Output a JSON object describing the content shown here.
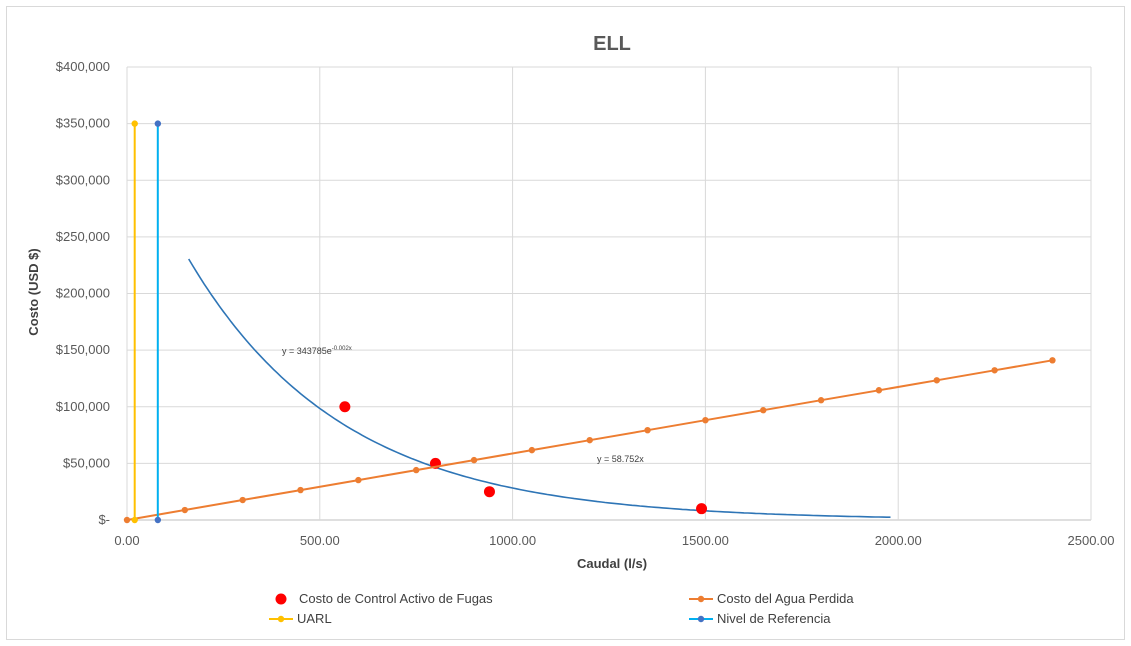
{
  "chart_data": {
    "type": "scatter",
    "title": "ELL",
    "xlabel": "Caudal (l/s)",
    "ylabel": "Costo (USD $)",
    "xlim": [
      0,
      2500
    ],
    "ylim": [
      0,
      400000
    ],
    "x_ticks": [
      "0.00",
      "500.00",
      "1000.00",
      "1500.00",
      "2000.00",
      "2500.00"
    ],
    "y_ticks": [
      "$-",
      "$50,000",
      "$100,000",
      "$150,000",
      "$200,000",
      "$250,000",
      "$300,000",
      "$350,000",
      "$400,000"
    ],
    "grid": true,
    "legend_position": "bottom",
    "series": [
      {
        "name": "Costo de Control Activo de Fugas",
        "kind": "markers",
        "color": "#ff0000",
        "x": [
          565,
          800,
          940,
          1490
        ],
        "y": [
          100000,
          50000,
          25000,
          10000
        ]
      },
      {
        "name": "Costo del Agua Perdida",
        "kind": "line-markers",
        "color": "#ed7d31",
        "x": [
          0,
          150,
          300,
          450,
          600,
          750,
          900,
          1050,
          1200,
          1350,
          1500,
          1650,
          1800,
          1950,
          2100,
          2250,
          2400
        ],
        "y": [
          0,
          8813,
          17626,
          26438,
          35251,
          44064,
          52877,
          61690,
          70502,
          79315,
          88128,
          96941,
          105754,
          114566,
          123379,
          132192,
          141005
        ]
      },
      {
        "name": "UARL",
        "kind": "line-markers",
        "color": "#ffc000",
        "x": [
          20,
          20
        ],
        "y": [
          0,
          350000
        ]
      },
      {
        "name": "Nivel de Referencia",
        "kind": "line-markers",
        "color": "#00b0f0",
        "marker_color": "#4472c4",
        "x": [
          80,
          80
        ],
        "y": [
          0,
          350000
        ]
      }
    ],
    "trendlines": [
      {
        "label": "y = 343785e",
        "exponent": "-0.002x",
        "kind": "exponential",
        "a": 343785,
        "b": -0.0025,
        "x_range": [
          160,
          1980
        ],
        "color": "#2e75b6"
      },
      {
        "label": "y = 58.752x",
        "kind": "linear",
        "slope": 58.752,
        "color": "#ed7d31"
      }
    ]
  }
}
